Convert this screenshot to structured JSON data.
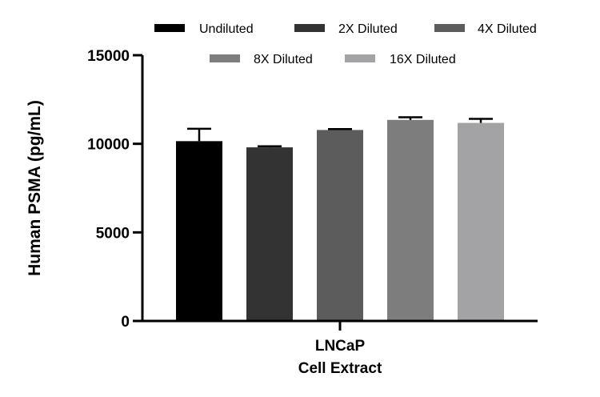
{
  "chart_data": {
    "type": "bar",
    "categories": [
      "LNCaP Cell Extract"
    ],
    "category_label_lines": [
      "LNCaP",
      "Cell Extract"
    ],
    "ylabel": "Human PSMA (pg/mL)",
    "xlabel": "",
    "ylim": [
      0,
      15000
    ],
    "yticks": [
      0,
      5000,
      10000,
      15000
    ],
    "grid": false,
    "legend_position": "top",
    "series": [
      {
        "name": "Undiluted",
        "values": [
          10150
        ],
        "error": [
          700
        ],
        "color": "#000000"
      },
      {
        "name": "2X Diluted",
        "values": [
          9800
        ],
        "error": [
          60
        ],
        "color": "#333333"
      },
      {
        "name": "4X Diluted",
        "values": [
          10780
        ],
        "error": [
          50
        ],
        "color": "#5c5c5c"
      },
      {
        "name": "8X Diluted",
        "values": [
          11350
        ],
        "error": [
          150
        ],
        "color": "#7d7d7d"
      },
      {
        "name": "16X Diluted",
        "values": [
          11180
        ],
        "error": [
          230
        ],
        "color": "#a3a3a6"
      }
    ]
  }
}
